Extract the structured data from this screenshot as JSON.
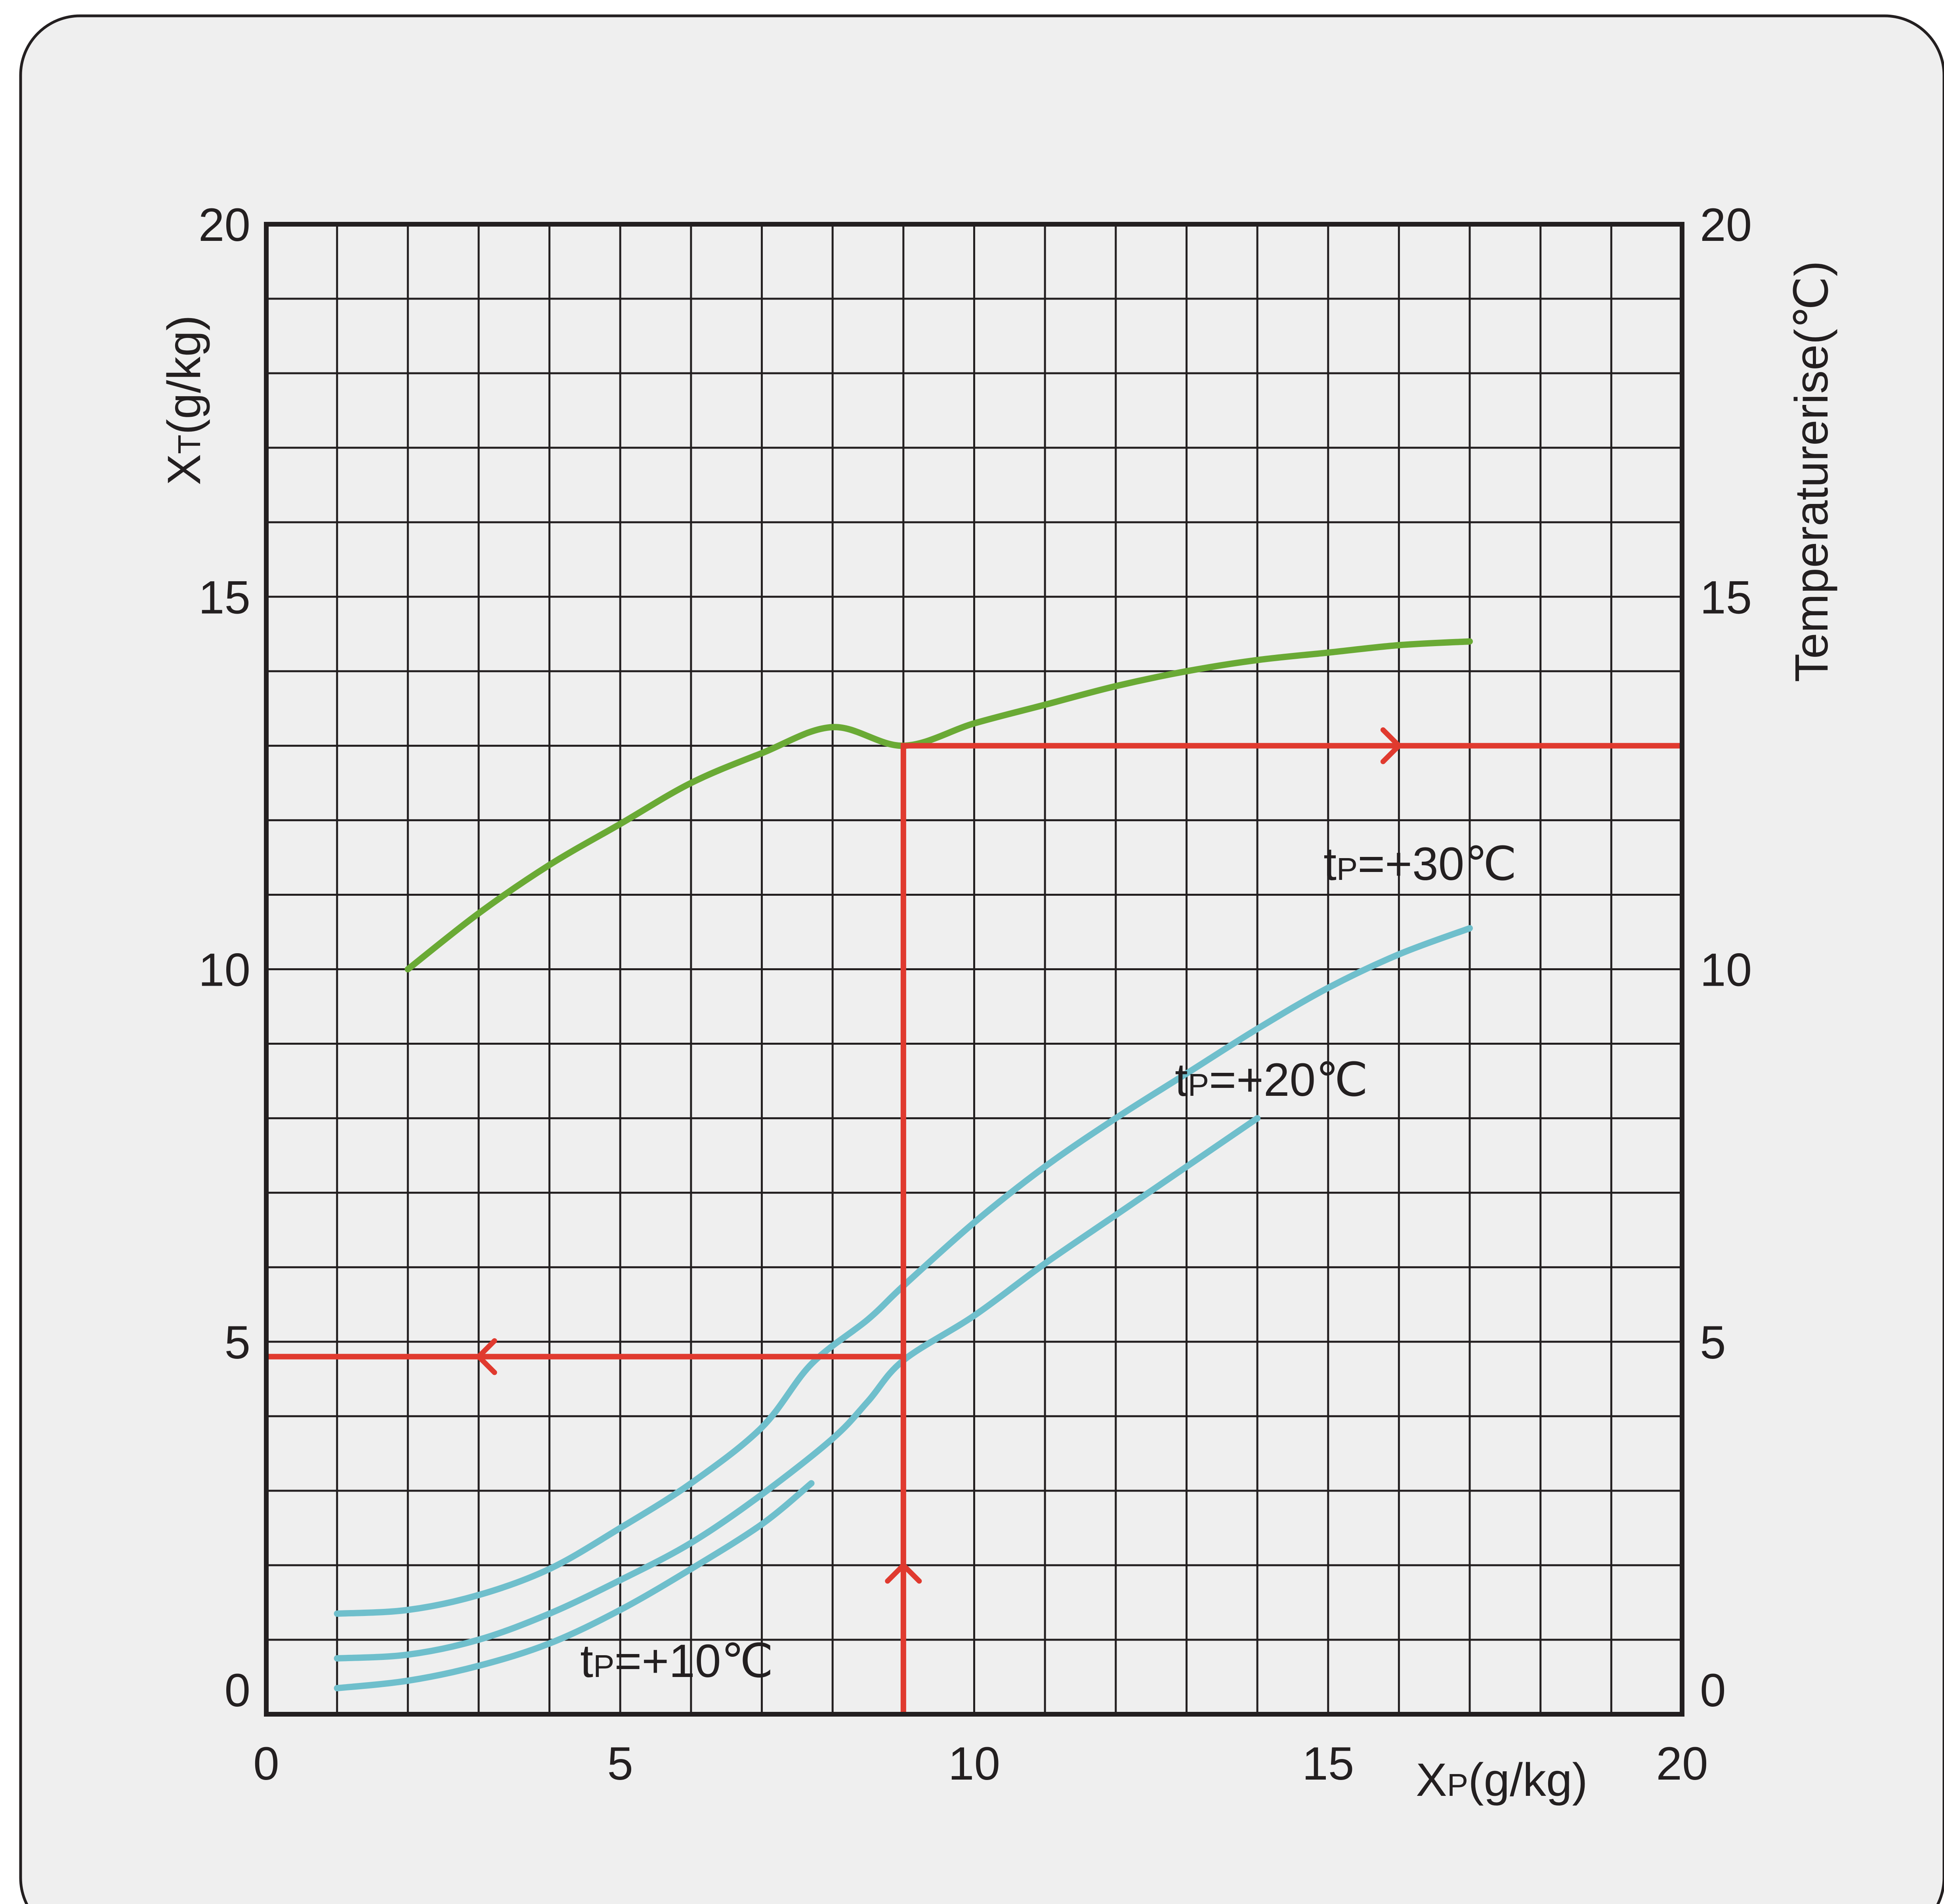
{
  "chart_data": {
    "type": "line",
    "xlabel": {
      "main": "X",
      "sub": "P",
      "unit": "(g/kg)"
    },
    "ylabel_left": {
      "main": "X",
      "sub": "T",
      "unit": "(g/kg)"
    },
    "ylabel_right": "Temperaturerise(℃)",
    "xlim": [
      0,
      20
    ],
    "ylim": [
      0,
      20
    ],
    "x_ticks": [
      "0",
      "5",
      "10",
      "15",
      "20"
    ],
    "y_ticks_left": [
      "0",
      "5",
      "10",
      "15",
      "20"
    ],
    "y_ticks_right": [
      "0",
      "5",
      "10",
      "15",
      "20"
    ],
    "grid": true,
    "series": [
      {
        "color": "#6aaa35",
        "points": [
          [
            2,
            10
          ],
          [
            3,
            10.75
          ],
          [
            4,
            11.4
          ],
          [
            5,
            11.95
          ],
          [
            6,
            12.5
          ],
          [
            7,
            12.9
          ],
          [
            8,
            13.25
          ],
          [
            9,
            13
          ],
          [
            10,
            13.3
          ],
          [
            11,
            13.55
          ],
          [
            12,
            13.8
          ],
          [
            13,
            14.0
          ],
          [
            14,
            14.15
          ],
          [
            15,
            14.25
          ],
          [
            16,
            14.35
          ],
          [
            17,
            14.4
          ]
        ]
      },
      {
        "color": "#6fbfcc",
        "label": {
          "t": "t",
          "sub": "P",
          "rest": "=+30℃"
        },
        "label_at": [
          16.3,
          11.2
        ],
        "points": [
          [
            1,
            1.35
          ],
          [
            2,
            1.4
          ],
          [
            3,
            1.6
          ],
          [
            4,
            1.95
          ],
          [
            5,
            2.5
          ],
          [
            6,
            3.1
          ],
          [
            7,
            3.85
          ],
          [
            7.7,
            4.7
          ],
          [
            8.5,
            5.3
          ],
          [
            9,
            5.75
          ],
          [
            10,
            6.6
          ],
          [
            11,
            7.35
          ],
          [
            12,
            8.0
          ],
          [
            13,
            8.6
          ],
          [
            14,
            9.2
          ],
          [
            15,
            9.75
          ],
          [
            16,
            10.2
          ],
          [
            17,
            10.55
          ]
        ]
      },
      {
        "color": "#6fbfcc",
        "label": {
          "t": "t",
          "sub": "P",
          "rest": "=+20℃"
        },
        "label_at": [
          14.2,
          8.3
        ],
        "points": [
          [
            1,
            0.75
          ],
          [
            2,
            0.8
          ],
          [
            3,
            1.0
          ],
          [
            4,
            1.35
          ],
          [
            5,
            1.8
          ],
          [
            6,
            2.3
          ],
          [
            7,
            2.95
          ],
          [
            8,
            3.7
          ],
          [
            8.5,
            4.2
          ],
          [
            9,
            4.75
          ],
          [
            10,
            5.35
          ],
          [
            11,
            6.05
          ],
          [
            12,
            6.7
          ],
          [
            13,
            7.35
          ],
          [
            14,
            8.0
          ]
        ]
      },
      {
        "color": "#6fbfcc",
        "label": {
          "t": "t",
          "sub": "P",
          "rest": "=+10℃"
        },
        "label_at": [
          5.8,
          0.5
        ],
        "points": [
          [
            1,
            0.35
          ],
          [
            2,
            0.45
          ],
          [
            3,
            0.65
          ],
          [
            4,
            0.95
          ],
          [
            5,
            1.4
          ],
          [
            6,
            1.95
          ],
          [
            7,
            2.55
          ],
          [
            7.7,
            3.1
          ]
        ]
      }
    ],
    "construction_lines": {
      "color": "#e03a2f",
      "path": [
        [
          9,
          0
        ],
        [
          9,
          13
        ],
        [
          20,
          13
        ]
      ],
      "arrow_up_at": [
        9,
        2
      ],
      "arrow_right_at": [
        16,
        13
      ],
      "second_path": [
        [
          9,
          4.8
        ],
        [
          0,
          4.8
        ]
      ],
      "arrow_left_at": [
        3,
        4.8
      ]
    }
  }
}
